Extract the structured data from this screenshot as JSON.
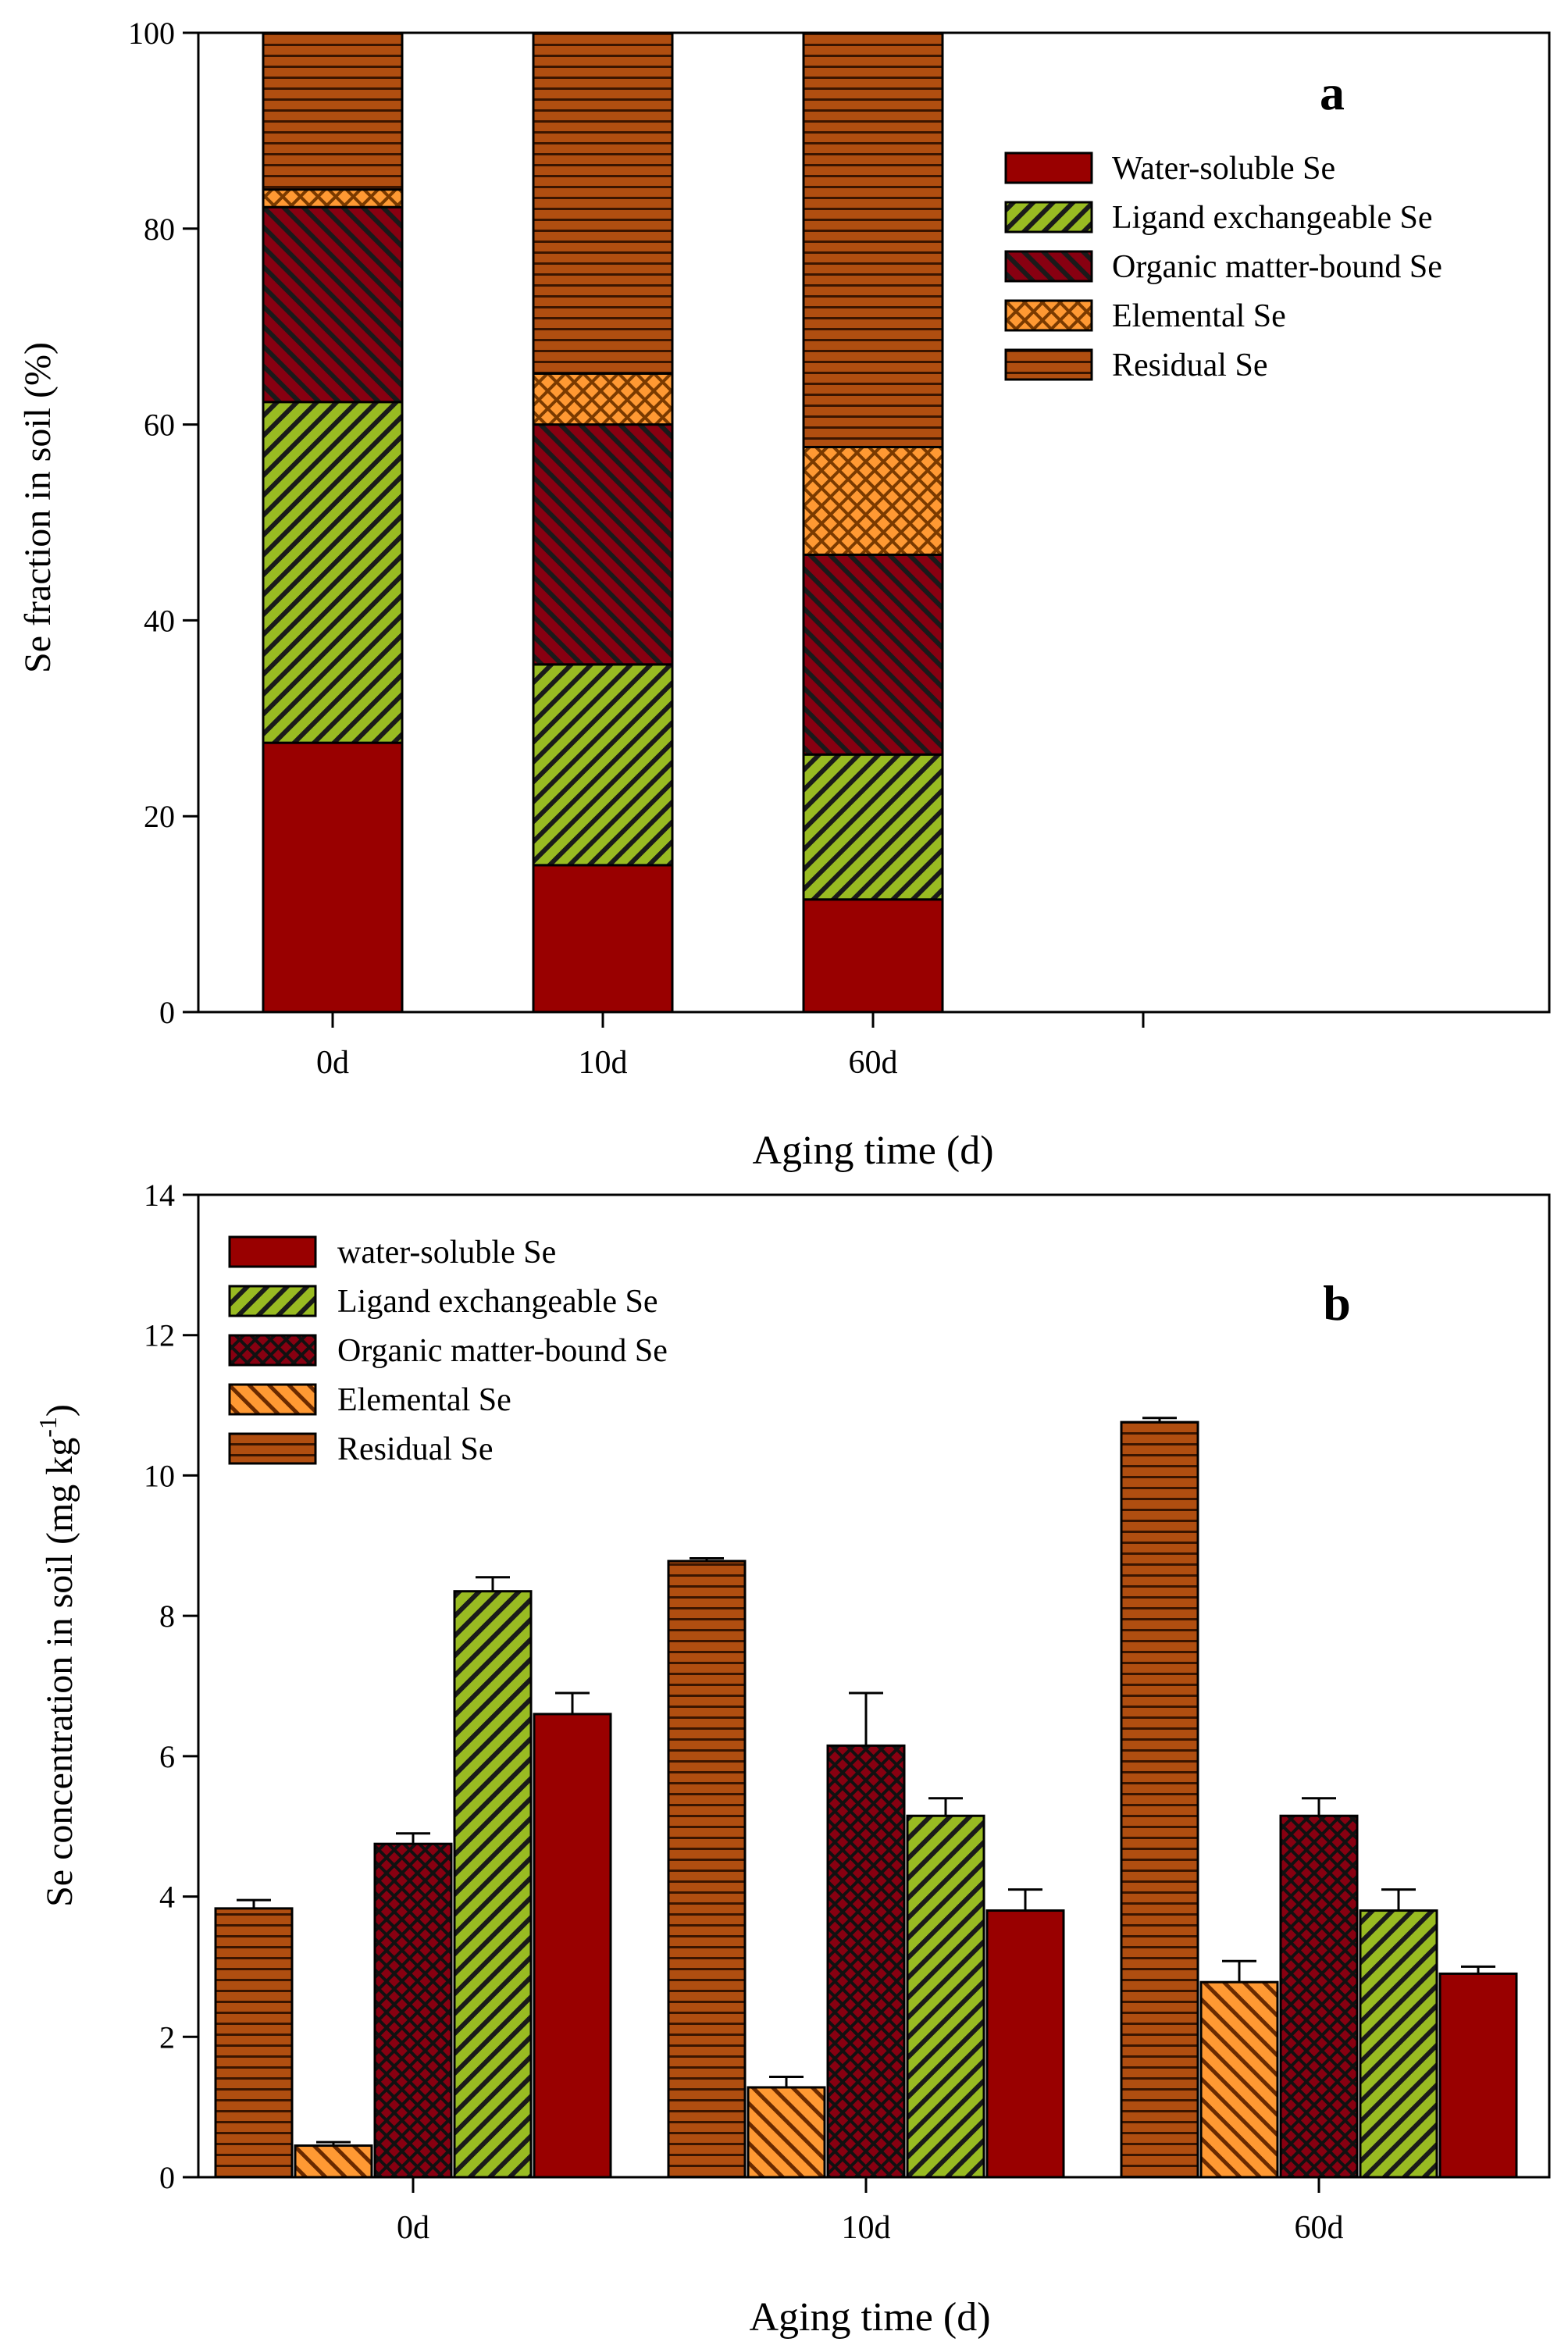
{
  "colors": {
    "water": "#990000",
    "ligand": "#99bb22",
    "organic": "#880011",
    "elemental": "#ff9933",
    "residual": "#b04e10"
  },
  "chart_data": [
    {
      "type": "bar",
      "stacked": true,
      "panel_label": "a",
      "xlabel": "Aging time (d)",
      "ylabel": "Se fraction in soil (%)",
      "ylim": [
        0,
        100
      ],
      "yticks": [
        "0",
        "20",
        "40",
        "60",
        "80",
        "100"
      ],
      "categories": [
        "0d",
        "10d",
        "60d"
      ],
      "series": [
        {
          "key": "water",
          "name": "Water-soluble Se",
          "values": [
            27.5,
            15.0,
            11.5
          ]
        },
        {
          "key": "ligand",
          "name": "Ligand exchangeable Se",
          "values": [
            34.8,
            20.5,
            14.8
          ]
        },
        {
          "key": "organic",
          "name": "Organic matter-bound Se",
          "values": [
            19.9,
            24.5,
            20.4
          ]
        },
        {
          "key": "elemental",
          "name": "Elemental Se",
          "values": [
            1.8,
            5.2,
            11.0
          ]
        },
        {
          "key": "residual",
          "name": "Residual Se",
          "values": [
            16.0,
            34.8,
            42.3
          ]
        }
      ],
      "legend_position": "top-right"
    },
    {
      "type": "bar",
      "stacked": false,
      "panel_label": "b",
      "xlabel": "Aging time (d)",
      "ylabel": "Se concentration in soil (mg kg",
      "ylabel_sup": "-1",
      "ylabel_end": ")",
      "ylim": [
        0,
        14
      ],
      "yticks": [
        "0",
        "2",
        "4",
        "6",
        "8",
        "10",
        "12",
        "14"
      ],
      "categories": [
        "0d",
        "10d",
        "60d"
      ],
      "bar_order": [
        "residual",
        "elemental",
        "organic",
        "ligand",
        "water"
      ],
      "series": [
        {
          "key": "water",
          "name": "water-soluble Se",
          "values": [
            6.6,
            3.8,
            2.9
          ],
          "errors": [
            0.3,
            0.3,
            0.1
          ]
        },
        {
          "key": "ligand",
          "name": "Ligand exchangeable Se",
          "values": [
            8.35,
            5.15,
            3.8
          ],
          "errors": [
            0.2,
            0.25,
            0.3
          ]
        },
        {
          "key": "organic",
          "name": "Organic matter-bound Se",
          "values": [
            4.75,
            6.15,
            5.15
          ],
          "errors": [
            0.15,
            0.75,
            0.25
          ]
        },
        {
          "key": "elemental",
          "name": "Elemental Se",
          "values": [
            0.45,
            1.28,
            2.78
          ],
          "errors": [
            0.05,
            0.15,
            0.3
          ]
        },
        {
          "key": "residual",
          "name": "Residual Se",
          "values": [
            3.83,
            8.78,
            10.76
          ],
          "errors": [
            0.12,
            0.04,
            0.06
          ]
        }
      ],
      "legend_position": "top-left"
    }
  ]
}
